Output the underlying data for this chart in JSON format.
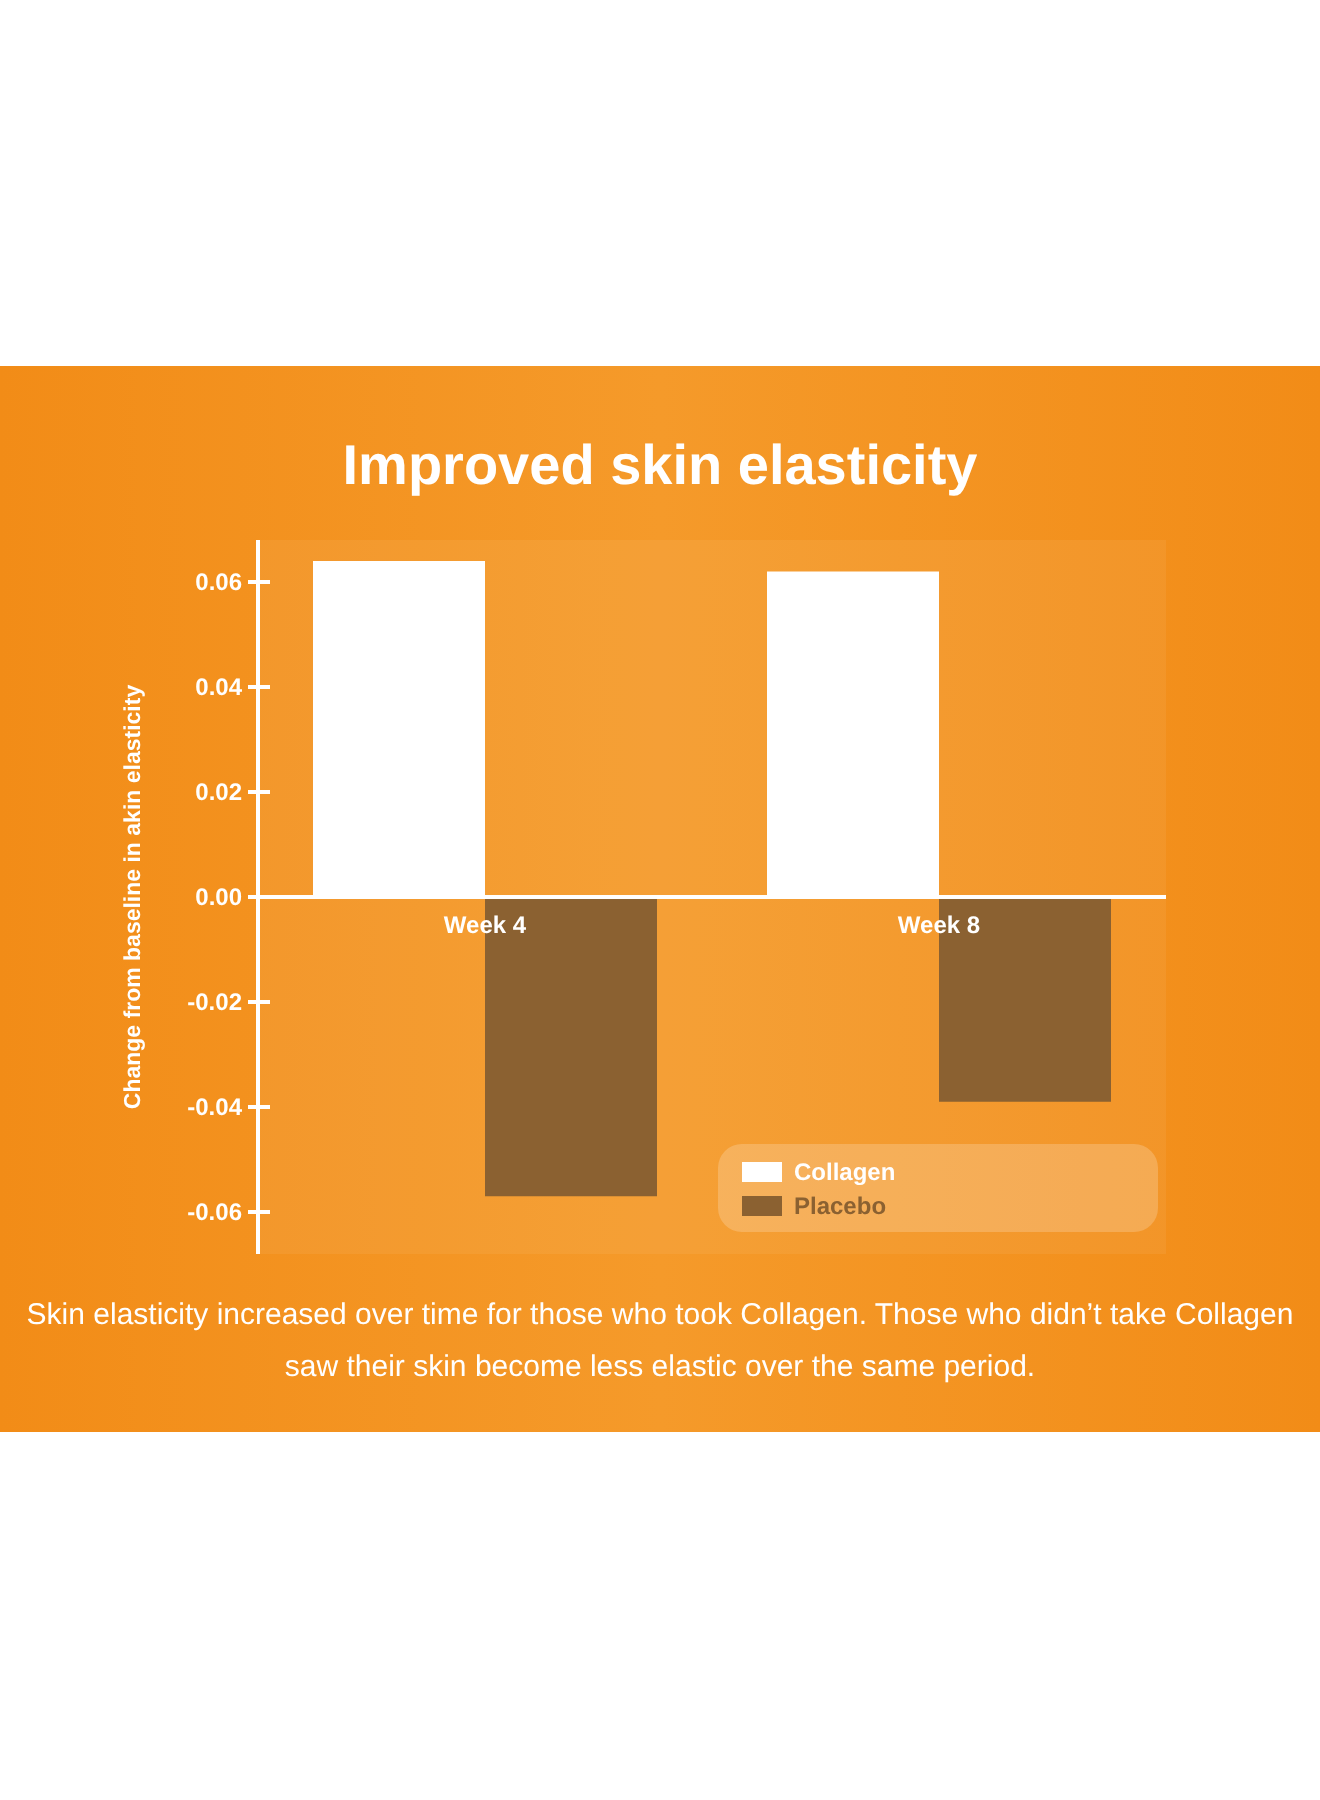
{
  "chart_data": {
    "type": "bar",
    "title": "Improved skin elasticity",
    "ylabel": "Change from baseline in akin elasticity",
    "categories": [
      "Week 4",
      "Week 8"
    ],
    "series": [
      {
        "name": "Collagen",
        "color": "#ffffff",
        "values": [
          0.064,
          0.062
        ]
      },
      {
        "name": "Placebo",
        "color": "#8b6131",
        "values": [
          -0.057,
          -0.039
        ]
      }
    ],
    "ylim": [
      -0.068,
      0.068
    ],
    "yticks": [
      {
        "value": 0.06,
        "label": "0.06"
      },
      {
        "value": 0.04,
        "label": "0.04"
      },
      {
        "value": 0.02,
        "label": "0.02"
      },
      {
        "value": 0,
        "label": "0.00"
      },
      {
        "value": -0.02,
        "label": "-0.02"
      },
      {
        "value": -0.04,
        "label": "-0.04"
      },
      {
        "value": -0.06,
        "label": "-0.06"
      }
    ],
    "grid": false,
    "legend": "bottom right",
    "annotations": [
      "Skin elasticity increased over time for those who took Collagen. Those who didn’t take Collagen saw their skin become less elastic over the same period."
    ]
  }
}
